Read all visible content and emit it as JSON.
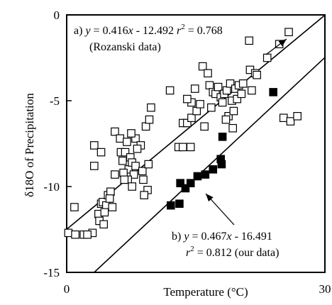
{
  "chart_data": {
    "type": "scatter",
    "xlabel": "Temperature (°C)",
    "ylabel": "δ18O of Precipitation",
    "xlim": [
      0,
      30
    ],
    "ylim": [
      -15,
      0
    ],
    "x_ticks": [
      0,
      30
    ],
    "y_ticks": [
      0,
      -5,
      -10,
      -15
    ],
    "x_tick_labels": [
      "0",
      "30"
    ],
    "y_tick_labels": [
      "0",
      "-5",
      "-10",
      "-15"
    ],
    "grid": false,
    "series": [
      {
        "marker": "open-square",
        "color": "#000000",
        "points": [
          [
            0.2,
            -12.7
          ],
          [
            1.0,
            -12.8
          ],
          [
            2.0,
            -12.8
          ],
          [
            3.0,
            -12.7
          ],
          [
            0.9,
            -11.2
          ],
          [
            2.4,
            -12.8
          ],
          [
            3.7,
            -11.6
          ],
          [
            4.0,
            -11.0
          ],
          [
            4.2,
            -10.9
          ],
          [
            3.8,
            -12.0
          ],
          [
            4.3,
            -12.2
          ],
          [
            4.6,
            -11.1
          ],
          [
            4.8,
            -10.5
          ],
          [
            5.1,
            -10.3
          ],
          [
            5.3,
            -11.2
          ],
          [
            4.4,
            -11.5
          ],
          [
            5.0,
            -10.7
          ],
          [
            3.2,
            -8.8
          ],
          [
            3.2,
            -7.6
          ],
          [
            4.0,
            -8.0
          ],
          [
            5.6,
            -9.3
          ],
          [
            5.6,
            -6.8
          ],
          [
            6.2,
            -7.2
          ],
          [
            6.3,
            -8.0
          ],
          [
            6.5,
            -8.5
          ],
          [
            6.8,
            -8.0
          ],
          [
            7.0,
            -7.4
          ],
          [
            7.2,
            -9.0
          ],
          [
            6.6,
            -9.2
          ],
          [
            7.4,
            -8.3
          ],
          [
            7.6,
            -8.6
          ],
          [
            7.8,
            -9.3
          ],
          [
            7.1,
            -9.6
          ],
          [
            7.6,
            -10.0
          ],
          [
            8.0,
            -7.2
          ],
          [
            8.6,
            -7.6
          ],
          [
            8.2,
            -7.8
          ],
          [
            8.0,
            -8.8
          ],
          [
            8.8,
            -9.1
          ],
          [
            8.9,
            -9.6
          ],
          [
            9.4,
            -10.2
          ],
          [
            9.0,
            -10.5
          ],
          [
            9.5,
            -8.7
          ],
          [
            9.2,
            -6.5
          ],
          [
            9.6,
            -6.1
          ],
          [
            9.8,
            -5.4
          ],
          [
            7.5,
            -6.9
          ],
          [
            6.7,
            -9.6
          ],
          [
            12.0,
            -4.4
          ],
          [
            13.5,
            -6.3
          ],
          [
            14.0,
            -6.3
          ],
          [
            14.5,
            -6.0
          ],
          [
            14.5,
            -5.1
          ],
          [
            15.1,
            -5.6
          ],
          [
            13.0,
            -7.7
          ],
          [
            13.5,
            -7.7
          ],
          [
            14.4,
            -7.7
          ],
          [
            14.9,
            -4.3
          ],
          [
            15.5,
            -5.2
          ],
          [
            15.8,
            -3.0
          ],
          [
            16.4,
            -3.4
          ],
          [
            16.6,
            -4.1
          ],
          [
            17.0,
            -4.5
          ],
          [
            16.8,
            -5.4
          ],
          [
            17.3,
            -4.6
          ],
          [
            17.6,
            -4.2
          ],
          [
            17.9,
            -4.8
          ],
          [
            18.1,
            -5.1
          ],
          [
            18.3,
            -4.6
          ],
          [
            18.6,
            -4.4
          ],
          [
            18.8,
            -5.9
          ],
          [
            19.0,
            -4.0
          ],
          [
            19.2,
            -5.0
          ],
          [
            19.4,
            -5.6
          ],
          [
            19.6,
            -4.3
          ],
          [
            19.8,
            -4.9
          ],
          [
            20.0,
            -4.1
          ],
          [
            20.3,
            -4.6
          ],
          [
            18.5,
            -6.1
          ],
          [
            19.3,
            -6.6
          ],
          [
            20.5,
            -4.0
          ],
          [
            21.3,
            -3.2
          ],
          [
            21.5,
            -4.4
          ],
          [
            21.9,
            -3.4
          ],
          [
            22.1,
            -3.5
          ],
          [
            21.2,
            -1.5
          ],
          [
            23.3,
            -2.5
          ],
          [
            24.7,
            -1.7
          ],
          [
            25.8,
            -1.0
          ],
          [
            25.2,
            -6.0
          ],
          [
            26.0,
            -6.2
          ],
          [
            26.8,
            -5.9
          ],
          [
            16.0,
            -6.5
          ],
          [
            14.0,
            -4.9
          ]
        ]
      },
      {
        "marker": "filled-square",
        "color": "#000000",
        "points": [
          [
            12.1,
            -11.1
          ],
          [
            13.1,
            -11.0
          ],
          [
            13.2,
            -9.8
          ],
          [
            13.8,
            -10.1
          ],
          [
            14.4,
            -9.8
          ],
          [
            15.2,
            -9.4
          ],
          [
            16.1,
            -9.3
          ],
          [
            17.0,
            -9.0
          ],
          [
            17.9,
            -8.4
          ],
          [
            18.0,
            -8.7
          ],
          [
            18.1,
            -7.1
          ],
          [
            24.0,
            -4.5
          ]
        ]
      }
    ],
    "regression_lines": [
      {
        "slope": 0.416,
        "intercept": -12.492
      },
      {
        "slope": 0.467,
        "intercept": -16.491
      }
    ],
    "annotations": [
      {
        "id": "a",
        "lines": [
          {
            "prefix": "a) ",
            "var1": "y",
            "eq": " = 0.416",
            "var2": "x",
            "rest": " - 12.492   ",
            "var3": "r",
            "sup": "2",
            "tail": " = 0.768"
          },
          {
            "text": "(Rozanski data)"
          }
        ]
      },
      {
        "id": "b",
        "lines": [
          {
            "prefix": "b) ",
            "var1": "y",
            "eq": " = 0.467",
            "var2": "x",
            "rest": " - 16.491"
          },
          {
            "var3": "r",
            "sup": "2",
            "tail": " = 0.812 (our data)"
          }
        ]
      }
    ]
  }
}
